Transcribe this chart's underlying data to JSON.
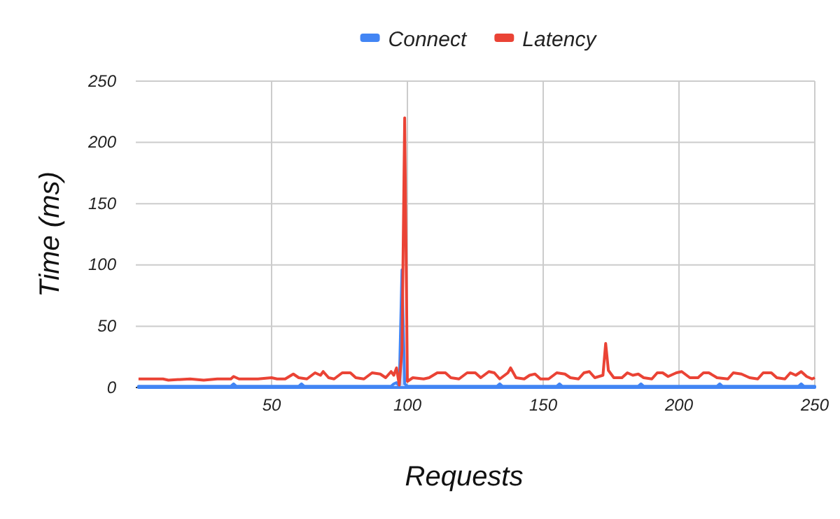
{
  "chart_data": {
    "type": "line",
    "xlabel": "Requests",
    "ylabel": "Time (ms)",
    "xlim": [
      0,
      250
    ],
    "xticks": [
      50,
      100,
      150,
      200,
      250
    ],
    "ylim": [
      0,
      250
    ],
    "yticks": [
      0,
      50,
      100,
      150,
      200,
      250
    ],
    "grid": true,
    "legend": "top",
    "series": [
      {
        "name": "Connect",
        "type": "area",
        "color": "#4285f4",
        "x": [
          1,
          20,
          35,
          36,
          37,
          50,
          60,
          61,
          62,
          80,
          94,
          95,
          96,
          97,
          98,
          99,
          100,
          101,
          120,
          133,
          134,
          135,
          150,
          155,
          156,
          157,
          180,
          185,
          186,
          187,
          200,
          214,
          215,
          216,
          230,
          244,
          245,
          246,
          250
        ],
        "values": [
          1,
          1,
          1,
          3,
          1,
          1,
          1,
          3,
          1,
          1,
          1,
          3,
          4,
          1,
          96,
          3,
          1,
          1,
          1,
          1,
          3,
          1,
          1,
          1,
          3,
          1,
          1,
          1,
          3,
          1,
          1,
          1,
          3,
          1,
          1,
          1,
          3,
          1,
          1
        ]
      },
      {
        "name": "Latency",
        "color": "#ea4335",
        "x": [
          1,
          10,
          12,
          20,
          25,
          30,
          35,
          36,
          38,
          45,
          50,
          52,
          55,
          58,
          60,
          63,
          66,
          68,
          69,
          71,
          73,
          76,
          79,
          81,
          84,
          87,
          90,
          92,
          94,
          95,
          96,
          97,
          98,
          99,
          100,
          102,
          106,
          108,
          111,
          114,
          116,
          119,
          122,
          125,
          127,
          130,
          132,
          134,
          137,
          138,
          140,
          143,
          145,
          147,
          149,
          152,
          155,
          158,
          160,
          163,
          165,
          167,
          169,
          172,
          173,
          174,
          176,
          179,
          181,
          183,
          185,
          187,
          190,
          192,
          194,
          196,
          199,
          201,
          204,
          207,
          209,
          211,
          214,
          218,
          220,
          223,
          226,
          229,
          231,
          234,
          236,
          239,
          241,
          243,
          245,
          247,
          249,
          250
        ],
        "values": [
          7,
          7,
          6,
          7,
          6,
          7,
          7,
          9,
          7,
          7,
          8,
          7,
          7,
          11,
          8,
          7,
          12,
          10,
          13,
          8,
          7,
          12,
          12,
          8,
          7,
          12,
          11,
          8,
          13,
          10,
          16,
          2,
          30,
          220,
          5,
          8,
          7,
          8,
          12,
          12,
          8,
          7,
          12,
          12,
          8,
          13,
          12,
          7,
          12,
          16,
          8,
          7,
          10,
          11,
          7,
          7,
          12,
          11,
          8,
          7,
          12,
          13,
          8,
          10,
          36,
          14,
          8,
          8,
          12,
          10,
          11,
          8,
          7,
          12,
          12,
          9,
          12,
          13,
          8,
          8,
          12,
          12,
          8,
          7,
          12,
          11,
          8,
          7,
          12,
          12,
          8,
          7,
          12,
          10,
          13,
          9,
          7,
          8
        ]
      }
    ]
  }
}
